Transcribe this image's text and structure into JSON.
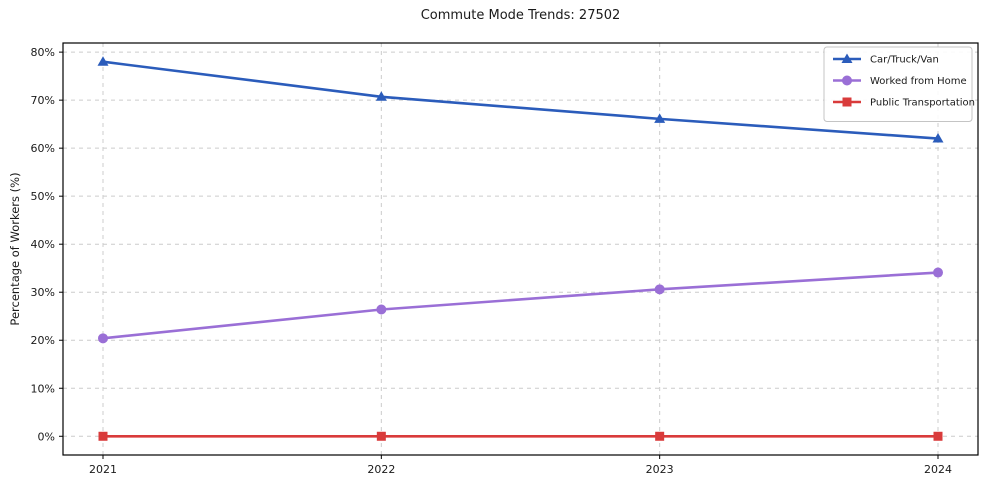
{
  "chart_data": {
    "type": "line",
    "title": "Commute Mode Trends: 27502",
    "ylabel": "Percentage of Workers (%)",
    "xlabel": "",
    "categories": [
      "2021",
      "2022",
      "2023",
      "2024"
    ],
    "series": [
      {
        "name": "Car/Truck/Van",
        "values": [
          78,
          70.7,
          66.1,
          62
        ],
        "color": "#2b5cbb",
        "marker": "triangle"
      },
      {
        "name": "Worked from Home",
        "values": [
          20.4,
          26.4,
          30.6,
          34.1
        ],
        "color": "#9a6fd6",
        "marker": "circle"
      },
      {
        "name": "Public Transportation",
        "values": [
          0,
          0,
          0,
          0
        ],
        "color": "#d93b3b",
        "marker": "square"
      }
    ],
    "ylim": [
      -3.9,
      81.9
    ],
    "yticks": [
      0,
      10,
      20,
      30,
      40,
      50,
      60,
      70,
      80
    ],
    "ytick_labels": [
      "0%",
      "10%",
      "20%",
      "30%",
      "40%",
      "50%",
      "60%",
      "70%",
      "80%"
    ],
    "grid": true,
    "grid_style": "dashed",
    "legend_position": "upper right",
    "colors": {
      "grid": "#cccccc",
      "spine": "#000000",
      "text": "#1a1a1a",
      "legend_border": "#c4c4c4",
      "legend_bg": "#ffffff"
    }
  }
}
